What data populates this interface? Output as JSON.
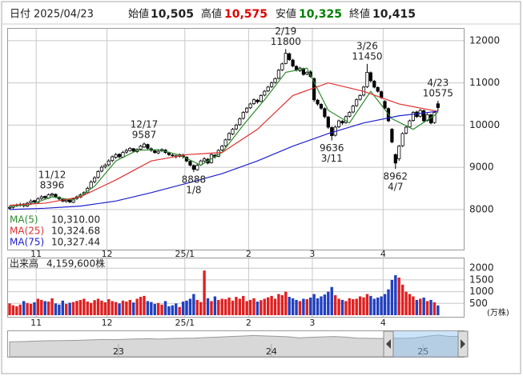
{
  "header": {
    "date_label": "日付",
    "date": "2025/04/23",
    "open_label": "始値",
    "open": "10,505",
    "high_label": "高値",
    "high": "10,575",
    "low_label": "安値",
    "low": "10,325",
    "close_label": "終値",
    "close": "10,415"
  },
  "chart_data": [
    {
      "type": "candlestick",
      "up_color": "#ffffff",
      "down_color": "#000000",
      "grid": true,
      "xlim": [
        -0.5,
        128.5
      ],
      "ylim": [
        7050,
        12300
      ],
      "yticks": [
        8000,
        9000,
        10000,
        11000,
        12000
      ],
      "xticks": [
        {
          "value": 7.5,
          "label": "11"
        },
        {
          "value": 27.5,
          "label": "12"
        },
        {
          "value": 49.5,
          "label": "25/1"
        },
        {
          "value": 67.5,
          "label": "2"
        },
        {
          "value": 85.5,
          "label": "3"
        },
        {
          "value": 105.5,
          "label": "4"
        }
      ],
      "candles": [
        [
          8030,
          8090,
          8000,
          8050
        ],
        [
          8050,
          8110,
          8020,
          8080
        ],
        [
          8090,
          8140,
          8060,
          8100
        ],
        [
          8100,
          8160,
          8070,
          8120
        ],
        [
          8130,
          8150,
          8050,
          8090
        ],
        [
          8080,
          8180,
          8060,
          8150
        ],
        [
          8160,
          8240,
          8130,
          8200
        ],
        [
          8210,
          8230,
          8140,
          8180
        ],
        [
          8170,
          8290,
          8150,
          8250
        ],
        [
          8260,
          8340,
          8230,
          8300
        ],
        [
          8310,
          8330,
          8240,
          8280
        ],
        [
          8270,
          8380,
          8250,
          8350
        ],
        [
          8340,
          8396,
          8300,
          8370
        ],
        [
          8360,
          8380,
          8270,
          8300
        ],
        [
          8290,
          8310,
          8220,
          8250
        ],
        [
          8240,
          8260,
          8170,
          8200
        ],
        [
          8190,
          8260,
          8160,
          8220
        ],
        [
          8230,
          8250,
          8150,
          8180
        ],
        [
          8170,
          8280,
          8150,
          8250
        ],
        [
          8260,
          8330,
          8230,
          8300
        ],
        [
          8290,
          8380,
          8270,
          8350
        ],
        [
          8360,
          8430,
          8330,
          8400
        ],
        [
          8400,
          8540,
          8380,
          8500
        ],
        [
          8510,
          8690,
          8490,
          8650
        ],
        [
          8660,
          8790,
          8620,
          8750
        ],
        [
          8760,
          8930,
          8730,
          8900
        ],
        [
          8910,
          9050,
          8880,
          9000
        ],
        [
          9010,
          9090,
          8970,
          9050
        ],
        [
          9060,
          9190,
          9020,
          9150
        ],
        [
          9160,
          9280,
          9120,
          9250
        ],
        [
          9240,
          9340,
          9200,
          9300
        ],
        [
          9310,
          9330,
          9210,
          9250
        ],
        [
          9240,
          9390,
          9220,
          9350
        ],
        [
          9360,
          9440,
          9320,
          9400
        ],
        [
          9400,
          9480,
          9370,
          9450
        ],
        [
          9440,
          9460,
          9350,
          9380
        ],
        [
          9370,
          9450,
          9340,
          9420
        ],
        [
          9430,
          9530,
          9400,
          9500
        ],
        [
          9480,
          9587,
          9460,
          9550
        ],
        [
          9540,
          9560,
          9420,
          9450
        ],
        [
          9440,
          9470,
          9370,
          9400
        ],
        [
          9390,
          9420,
          9320,
          9350
        ],
        [
          9340,
          9410,
          9310,
          9380
        ],
        [
          9390,
          9450,
          9360,
          9420
        ],
        [
          9410,
          9430,
          9320,
          9350
        ],
        [
          9340,
          9370,
          9270,
          9300
        ],
        [
          9290,
          9330,
          9240,
          9280
        ],
        [
          9270,
          9300,
          9210,
          9250
        ],
        [
          9260,
          9330,
          9230,
          9300
        ],
        [
          9290,
          9320,
          9210,
          9250
        ],
        [
          9240,
          9260,
          9120,
          9150
        ],
        [
          9140,
          9170,
          9020,
          9050
        ],
        [
          9040,
          9070,
          8888,
          8950
        ],
        [
          8940,
          9080,
          8920,
          9050
        ],
        [
          9060,
          9180,
          9030,
          9150
        ],
        [
          9150,
          9240,
          9120,
          9200
        ],
        [
          9190,
          9220,
          9070,
          9100
        ],
        [
          9110,
          9330,
          9090,
          9300
        ],
        [
          9290,
          9310,
          9210,
          9250
        ],
        [
          9260,
          9430,
          9240,
          9400
        ],
        [
          9410,
          9530,
          9380,
          9500
        ],
        [
          9510,
          9680,
          9480,
          9650
        ],
        [
          9660,
          9830,
          9630,
          9800
        ],
        [
          9790,
          9930,
          9760,
          9900
        ],
        [
          9910,
          10030,
          9880,
          10000
        ],
        [
          10010,
          10180,
          9980,
          10150
        ],
        [
          10160,
          10330,
          10130,
          10300
        ],
        [
          10310,
          10430,
          10280,
          10400
        ],
        [
          10410,
          10530,
          10380,
          10500
        ],
        [
          10510,
          10630,
          10480,
          10600
        ],
        [
          10590,
          10620,
          10510,
          10550
        ],
        [
          10560,
          10730,
          10540,
          10700
        ],
        [
          10710,
          10830,
          10680,
          10800
        ],
        [
          10810,
          10930,
          10780,
          10900
        ],
        [
          10910,
          11030,
          10880,
          11000
        ],
        [
          11010,
          11130,
          10980,
          11100
        ],
        [
          11110,
          11330,
          11080,
          11300
        ],
        [
          11310,
          11480,
          11280,
          11450
        ],
        [
          11460,
          11800,
          11440,
          11700
        ],
        [
          11690,
          11720,
          11520,
          11550
        ],
        [
          11540,
          11570,
          11370,
          11400
        ],
        [
          11390,
          11420,
          11270,
          11300
        ],
        [
          11290,
          11380,
          11260,
          11350
        ],
        [
          11340,
          11360,
          11170,
          11200
        ],
        [
          11210,
          11280,
          11180,
          11250
        ],
        [
          11260,
          11300,
          11120,
          11150
        ],
        [
          11100,
          11130,
          10550,
          10600
        ],
        [
          10590,
          10620,
          10460,
          10500
        ],
        [
          10490,
          10520,
          10360,
          10400
        ],
        [
          10390,
          10420,
          10160,
          10200
        ],
        [
          10190,
          10220,
          9910,
          9950
        ],
        [
          9940,
          9970,
          9636,
          9750
        ],
        [
          9760,
          9990,
          9730,
          9950
        ],
        [
          9960,
          10130,
          9930,
          10100
        ],
        [
          10090,
          10120,
          10010,
          10050
        ],
        [
          10060,
          10230,
          10030,
          10200
        ],
        [
          10210,
          10330,
          10180,
          10300
        ],
        [
          10310,
          10480,
          10280,
          10450
        ],
        [
          10460,
          10630,
          10430,
          10600
        ],
        [
          10610,
          10730,
          10580,
          10700
        ],
        [
          10710,
          10930,
          10680,
          10900
        ],
        [
          10910,
          11450,
          10880,
          11250
        ],
        [
          11240,
          11270,
          11010,
          11050
        ],
        [
          11040,
          11070,
          10870,
          10900
        ],
        [
          10890,
          10920,
          10770,
          10800
        ],
        [
          10790,
          10820,
          10620,
          10650
        ],
        [
          10560,
          10590,
          10370,
          10400
        ],
        [
          10390,
          10420,
          10070,
          10100
        ],
        [
          9900,
          9930,
          9570,
          9600
        ],
        [
          9300,
          9330,
          8962,
          9100
        ],
        [
          9200,
          9530,
          9150,
          9500
        ],
        [
          9510,
          9830,
          9480,
          9800
        ],
        [
          9810,
          9980,
          9780,
          9950
        ],
        [
          9960,
          10130,
          9930,
          10100
        ],
        [
          10110,
          10330,
          10080,
          10300
        ],
        [
          10310,
          10340,
          10170,
          10200
        ],
        [
          10210,
          10380,
          10180,
          10350
        ],
        [
          10340,
          10370,
          10070,
          10100
        ],
        [
          10110,
          10280,
          10080,
          10250
        ],
        [
          10240,
          10270,
          10020,
          10050
        ],
        [
          10060,
          10330,
          10030,
          10300
        ],
        [
          10505,
          10575,
          10325,
          10415
        ]
      ],
      "series": [
        {
          "name": "MA(5)",
          "color": "#2e8b2e",
          "legend_value": "10,310.00",
          "x": [
            0,
            6,
            12,
            18,
            24,
            30,
            36,
            42,
            48,
            54,
            60,
            66,
            72,
            78,
            84,
            90,
            96,
            102,
            108,
            114,
            120,
            121
          ],
          "values": [
            8070,
            8120,
            8300,
            8220,
            8550,
            9150,
            9400,
            9420,
            9290,
            9050,
            9350,
            10000,
            10600,
            11250,
            11350,
            10350,
            10050,
            10800,
            10150,
            9900,
            10230,
            10310
          ]
        },
        {
          "name": "MA(25)",
          "color": "#e03030",
          "legend_value": "10,324.68",
          "x": [
            0,
            10,
            20,
            30,
            40,
            50,
            60,
            70,
            80,
            90,
            100,
            110,
            121
          ],
          "values": [
            8100,
            8150,
            8300,
            8700,
            9150,
            9300,
            9350,
            9900,
            10700,
            11000,
            10800,
            10500,
            10324.68
          ]
        },
        {
          "name": "MA(75)",
          "color": "#2020d0",
          "legend_value": "10,327.44",
          "x": [
            0,
            10,
            20,
            30,
            40,
            50,
            60,
            70,
            80,
            90,
            100,
            110,
            121
          ],
          "values": [
            8000,
            8030,
            8080,
            8200,
            8400,
            8620,
            8850,
            9150,
            9500,
            9800,
            10050,
            10220,
            10327.44
          ]
        }
      ],
      "annotations": [
        {
          "date": "11/12",
          "value": 8396
        },
        {
          "date": "12/17",
          "value": 9587
        },
        {
          "date": "1/8",
          "value": 8888
        },
        {
          "date": "2/19",
          "value": 11800
        },
        {
          "date": "3/11",
          "value": 9636
        },
        {
          "date": "3/26",
          "value": 11450
        },
        {
          "date": "4/7",
          "value": 8962
        },
        {
          "date": "4/23",
          "value": 10575
        }
      ]
    },
    {
      "type": "bar",
      "title": "出来高",
      "subtitle": "4,159,600株",
      "unit": "(万株)",
      "up_color": "#e02020",
      "down_color": "#2040c0",
      "xlim": [
        -0.5,
        128.5
      ],
      "ylim": [
        0,
        2450
      ],
      "yticks": [
        500,
        1000,
        1500,
        2000
      ],
      "xticks": [
        {
          "value": 7.5,
          "label": "11"
        },
        {
          "value": 27.5,
          "label": "12"
        },
        {
          "value": 49.5,
          "label": "25/1"
        },
        {
          "value": 67.5,
          "label": "2"
        },
        {
          "value": 85.5,
          "label": "3"
        },
        {
          "value": 105.5,
          "label": "4"
        }
      ],
      "values": [
        500,
        420,
        380,
        450,
        600,
        520,
        480,
        550,
        700,
        650,
        600,
        580,
        720,
        500,
        450,
        620,
        480,
        530,
        560,
        610,
        650,
        700,
        580,
        520,
        640,
        700,
        620,
        550,
        680,
        600,
        560,
        500,
        620,
        580,
        650,
        540,
        700,
        780,
        820,
        600,
        560,
        480,
        520,
        450,
        600,
        380,
        420,
        500,
        350,
        580,
        620,
        700,
        900,
        650,
        560,
        1900,
        720,
        600,
        800,
        650,
        700,
        680,
        750,
        620,
        780,
        700,
        820,
        600,
        650,
        720,
        580,
        640,
        700,
        760,
        820,
        700,
        900,
        850,
        1000,
        780,
        720,
        650,
        600,
        700,
        680,
        750,
        900,
        720,
        800,
        880,
        1000,
        1200,
        850,
        700,
        650,
        600,
        720,
        680,
        700,
        800,
        760,
        900,
        820,
        700,
        750,
        800,
        900,
        1100,
        1500,
        1700,
        1600,
        1300,
        1000,
        900,
        800,
        650,
        700,
        750,
        600,
        650,
        550,
        415.96
      ]
    },
    {
      "type": "area",
      "color": "#999999",
      "xlim": [
        0,
        39
      ],
      "ylim": [
        0,
        13000
      ],
      "xticks": [
        {
          "value": 9.4,
          "label": "23"
        },
        {
          "value": 22.6,
          "label": "24"
        },
        {
          "value": 35.7,
          "label": "25"
        }
      ],
      "values": [
        7600,
        7700,
        7900,
        8100,
        8200,
        8300,
        8400,
        8600,
        8800,
        8700,
        8900,
        9100,
        9200,
        9000,
        9300,
        9400,
        9500,
        9800,
        10000,
        10300,
        10500,
        10800,
        10600,
        10400,
        10200,
        9600,
        9900,
        10100,
        10300,
        10000,
        9500,
        9400,
        9300,
        9500,
        9400,
        9600,
        10400,
        11000,
        10300,
        10400
      ]
    }
  ]
}
